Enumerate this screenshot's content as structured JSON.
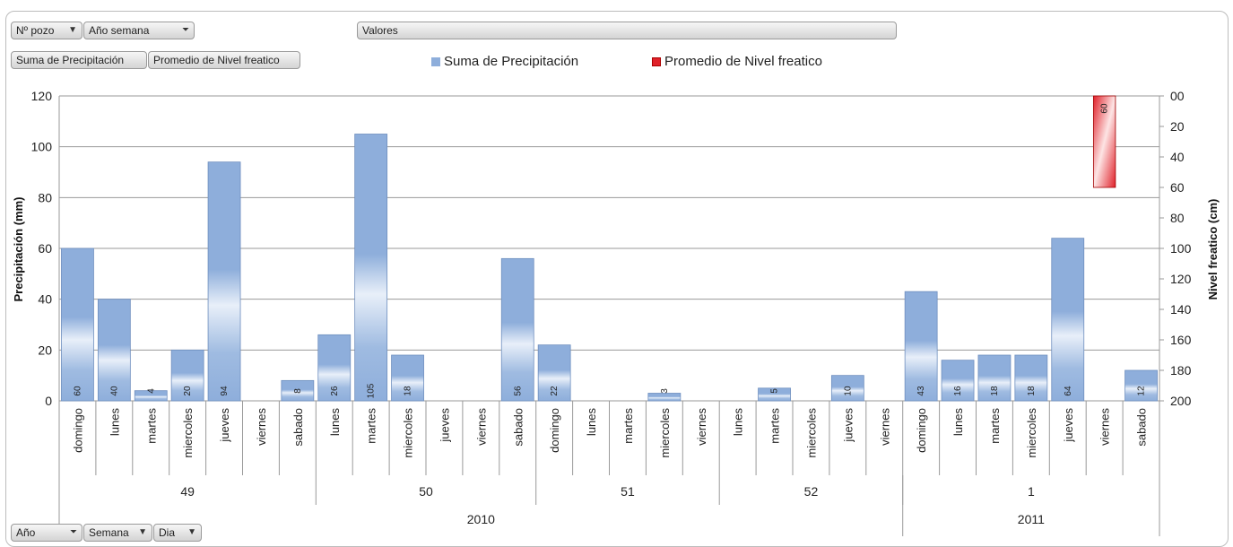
{
  "filters": {
    "pozo_label": "Nº pozo",
    "anio_semana_label": "Año semana",
    "valores_label": "Valores",
    "anio_label": "Año",
    "semana_label": "Semana",
    "dia_label": "Dia"
  },
  "value_fields": {
    "precip_label": "Suma de Precipitación",
    "nivel_label": "Promedio de Nivel freatico"
  },
  "colors": {
    "bar_blue": "#8eaedb",
    "bar_red": "#e0212a",
    "grid": "#9a9a9a"
  },
  "chart_data": {
    "type": "bar",
    "title": "",
    "ylabel": "Precipitación (mm)",
    "y2label": "Nivel freatico (cm)",
    "ylim": [
      0,
      120
    ],
    "y2lim": [
      0,
      200
    ],
    "y2_reversed": true,
    "y_ticks": [
      "0",
      "20",
      "40",
      "60",
      "80",
      "100",
      "120"
    ],
    "y2_ticks": [
      "00",
      "20",
      "40",
      "60",
      "80",
      "100",
      "120",
      "140",
      "160",
      "180",
      "200"
    ],
    "grid": true,
    "legend": "top",
    "categories": [
      "domingo",
      "lunes",
      "martes",
      "miercoles",
      "jueves",
      "viernes",
      "sabado",
      "lunes",
      "martes",
      "miercoles",
      "jueves",
      "viernes",
      "sabado",
      "domingo",
      "lunes",
      "martes",
      "miercoles",
      "viernes",
      "lunes",
      "martes",
      "miercoles",
      "jueves",
      "viernes",
      "domingo",
      "lunes",
      "martes",
      "miercoles",
      "jueves",
      "viernes",
      "sabado"
    ],
    "weeks": [
      {
        "label": "49",
        "count": 7
      },
      {
        "label": "50",
        "count": 6
      },
      {
        "label": "51",
        "count": 5
      },
      {
        "label": "52",
        "count": 5
      },
      {
        "label": "1",
        "count": 7
      }
    ],
    "years": [
      {
        "label": "2010",
        "count": 23
      },
      {
        "label": "2011",
        "count": 7
      }
    ],
    "series": [
      {
        "name": "Suma de Precipitación",
        "axis": "left",
        "values": [
          60,
          40,
          4,
          20,
          94,
          null,
          8,
          26,
          105,
          18,
          null,
          null,
          56,
          22,
          null,
          null,
          3,
          null,
          null,
          5,
          null,
          10,
          null,
          43,
          16,
          18,
          18,
          64,
          null,
          12
        ]
      },
      {
        "name": "Promedio de Nivel freatico",
        "axis": "right",
        "values": [
          null,
          null,
          null,
          null,
          null,
          null,
          null,
          null,
          null,
          null,
          null,
          null,
          null,
          null,
          null,
          null,
          null,
          null,
          null,
          null,
          null,
          null,
          null,
          null,
          null,
          null,
          null,
          null,
          60,
          null
        ]
      }
    ]
  }
}
